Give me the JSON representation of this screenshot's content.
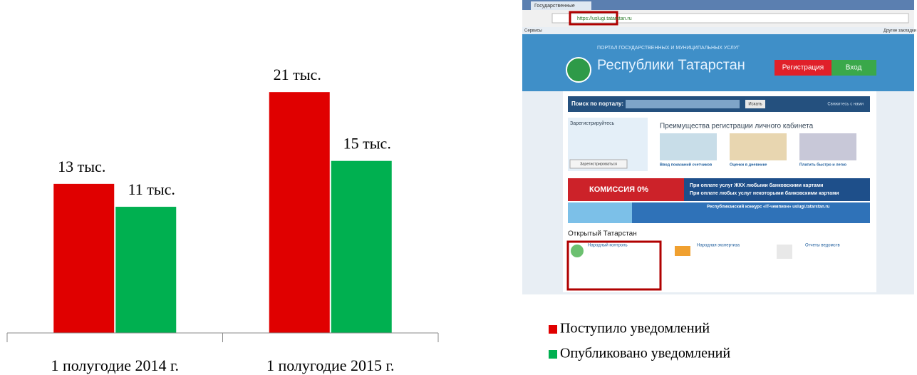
{
  "chart_data": {
    "type": "bar",
    "categories": [
      "1 полугодие 2014 г.",
      "1 полугодие 2015 г."
    ],
    "series": [
      {
        "name": "Поступило уведомлений",
        "color": "#e00000",
        "values": [
          13,
          21
        ],
        "value_labels": [
          "13 тыс.",
          "21 тыс."
        ]
      },
      {
        "name": "Опубликовано уведомлений",
        "color": "#00b050",
        "values": [
          11,
          15
        ],
        "value_labels": [
          "11 тыс.",
          "15 тыс."
        ]
      }
    ],
    "ylim": [
      0,
      23
    ]
  },
  "screenshot": {
    "tab": "Государственные",
    "address": "https://uslugi.tatarstan.ru",
    "bookmarks": "Сервисы",
    "other_bookmarks": "Другие закладки",
    "portal_caption": "ПОРТАЛ ГОСУДАРСТВЕННЫХ И МУНИЦИПАЛЬНЫХ УСЛУГ",
    "portal_name": "Республики Татарстан",
    "register_button": "Регистрация",
    "login_button": "Вход",
    "search_label": "Поиск по порталу:",
    "search_button": "Искать",
    "contact": "Свяжитесь с нами",
    "signup_title": "Зарегистрируйтесь",
    "signup_button": "Зарегистрироваться",
    "benefits_title": "Преимущества регистрации личного кабинета",
    "benefits": [
      "Ввод показаний счетчиков",
      "Оценки в дневнике",
      "Платить быстро и легко"
    ],
    "banner_commission": "КОМИССИЯ 0%",
    "banner_lines": [
      "При оплате услуг ЖКХ любыми банковскими картами",
      "При оплате любых услуг некоторыми банковскими картами"
    ],
    "banner_contest": "Республиканский конкурс «IT-чемпион» uslugi.tatarstan.ru",
    "open_title": "Открытый Татарстан",
    "open_items": [
      "Народный контроль",
      "Народная экспертиза",
      "Отчеты ведомств"
    ]
  }
}
